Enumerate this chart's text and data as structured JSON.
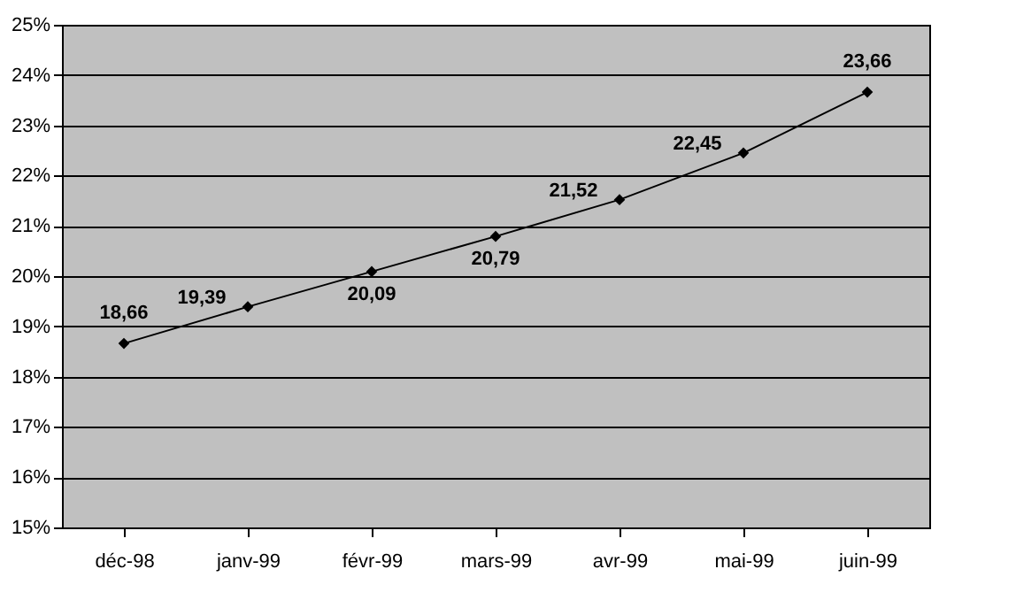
{
  "chart_data": {
    "type": "line",
    "categories": [
      "déc-98",
      "janv-99",
      "févr-99",
      "mars-99",
      "avr-99",
      "mai-99",
      "juin-99"
    ],
    "series": [
      {
        "color": "#000000",
        "values": [
          18.66,
          19.39,
          20.09,
          20.79,
          21.52,
          22.45,
          23.66
        ],
        "value_labels": [
          "18,66",
          "19,39",
          "20,09",
          "20,79",
          "21,52",
          "22,45",
          "23,66"
        ]
      }
    ],
    "ylim": [
      15,
      25
    ],
    "yticks": [
      {
        "value": 15,
        "label": "15%"
      },
      {
        "value": 16,
        "label": "16%"
      },
      {
        "value": 17,
        "label": "17%"
      },
      {
        "value": 18,
        "label": "18%"
      },
      {
        "value": 19,
        "label": "19%"
      },
      {
        "value": 20,
        "label": "20%"
      },
      {
        "value": 21,
        "label": "21%"
      },
      {
        "value": 22,
        "label": "22%"
      },
      {
        "value": 23,
        "label": "23%"
      },
      {
        "value": 24,
        "label": "24%"
      },
      {
        "value": 25,
        "label": "25%"
      }
    ],
    "grid": "y",
    "marker": "diamond",
    "line_style": "solid"
  }
}
